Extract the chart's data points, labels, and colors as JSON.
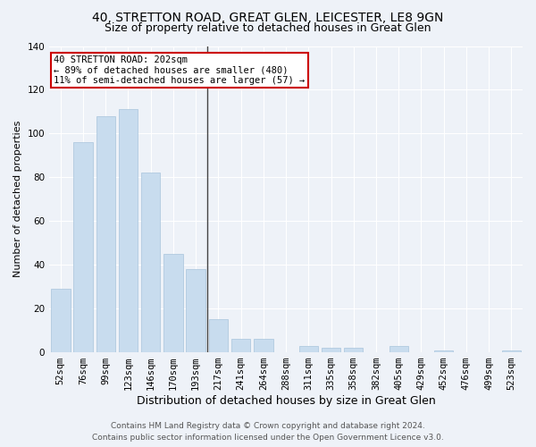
{
  "title": "40, STRETTON ROAD, GREAT GLEN, LEICESTER, LE8 9GN",
  "subtitle": "Size of property relative to detached houses in Great Glen",
  "xlabel": "Distribution of detached houses by size in Great Glen",
  "ylabel": "Number of detached properties",
  "categories": [
    "52sqm",
    "76sqm",
    "99sqm",
    "123sqm",
    "146sqm",
    "170sqm",
    "193sqm",
    "217sqm",
    "241sqm",
    "264sqm",
    "288sqm",
    "311sqm",
    "335sqm",
    "358sqm",
    "382sqm",
    "405sqm",
    "429sqm",
    "452sqm",
    "476sqm",
    "499sqm",
    "523sqm"
  ],
  "values": [
    29,
    96,
    108,
    111,
    82,
    45,
    38,
    15,
    6,
    6,
    0,
    3,
    2,
    2,
    0,
    3,
    0,
    1,
    0,
    0,
    1
  ],
  "bar_color": "#c8dcee",
  "bar_edge_color": "#a8c4dc",
  "property_line_index": 6,
  "annotation_text": "40 STRETTON ROAD: 202sqm\n← 89% of detached houses are smaller (480)\n11% of semi-detached houses are larger (57) →",
  "annotation_box_color": "#ffffff",
  "annotation_box_edge_color": "#cc0000",
  "ylim": [
    0,
    140
  ],
  "yticks": [
    0,
    20,
    40,
    60,
    80,
    100,
    120,
    140
  ],
  "footer_line1": "Contains HM Land Registry data © Crown copyright and database right 2024.",
  "footer_line2": "Contains public sector information licensed under the Open Government Licence v3.0.",
  "background_color": "#eef2f8",
  "plot_bg_color": "#eef2f8",
  "grid_color": "#ffffff",
  "title_fontsize": 10,
  "subtitle_fontsize": 9,
  "xlabel_fontsize": 9,
  "ylabel_fontsize": 8,
  "tick_fontsize": 7.5,
  "annotation_fontsize": 7.5,
  "footer_fontsize": 6.5
}
